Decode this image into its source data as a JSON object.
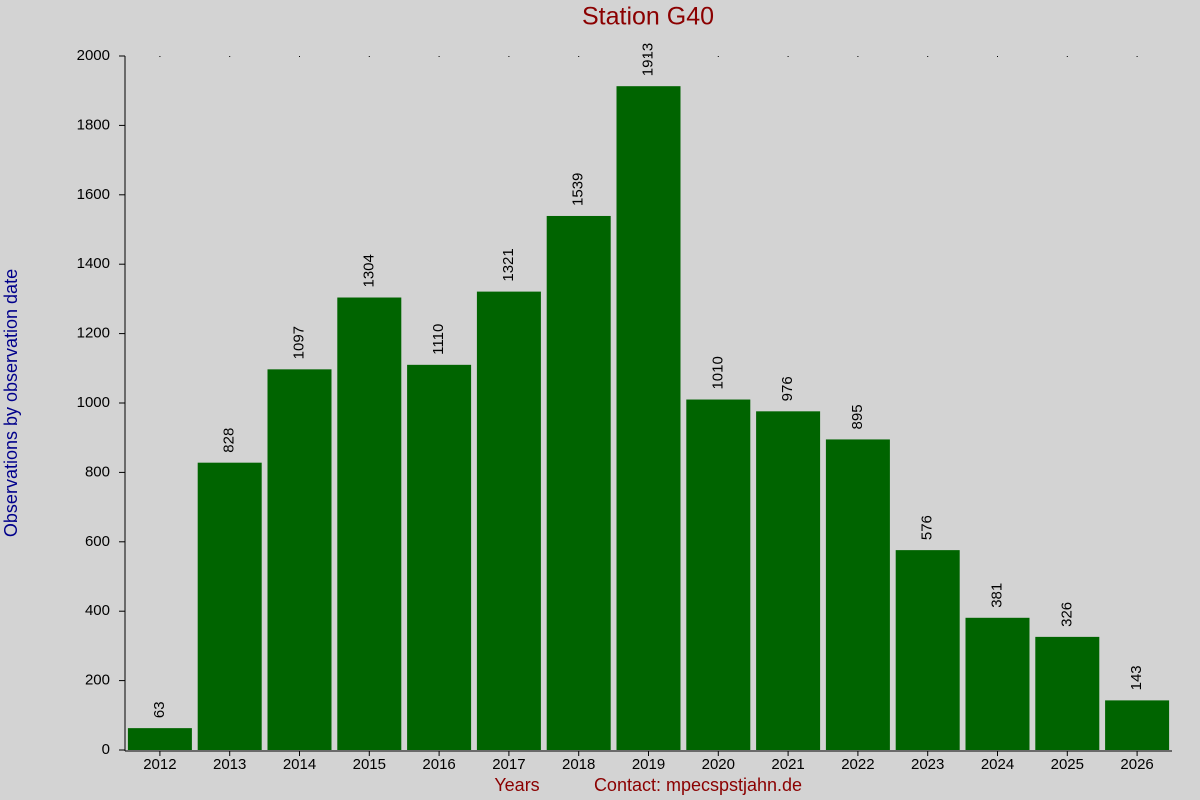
{
  "chart_data": {
    "type": "bar",
    "title": "Station G40",
    "y_label": "Observations by observation date",
    "x_label": "Years",
    "note": "Contact: mpecspstjahn.de",
    "categories": [
      "2012",
      "2013",
      "2014",
      "2015",
      "2016",
      "2017",
      "2018",
      "2019",
      "2020",
      "2021",
      "2022",
      "2023",
      "2024",
      "2025",
      "2026"
    ],
    "values": [
      63,
      828,
      1097,
      1304,
      1110,
      1321,
      1539,
      1913,
      1010,
      976,
      895,
      576,
      381,
      326,
      143
    ],
    "color": "#006400",
    "ylim": [
      0,
      2000
    ],
    "yticks": [
      0,
      200,
      400,
      600,
      800,
      1000,
      1200,
      1400,
      1600,
      1800,
      2000
    ],
    "grid": false
  }
}
